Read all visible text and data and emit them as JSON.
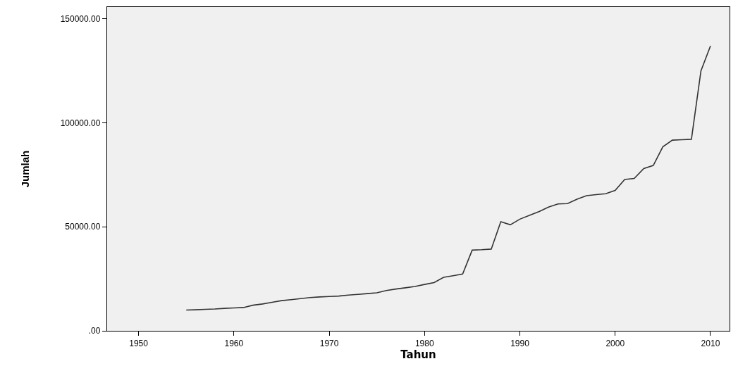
{
  "chart_data": {
    "type": "line",
    "xlabel": "Tahun",
    "ylabel": "Jumlah",
    "x": [
      1955,
      1956,
      1957,
      1958,
      1959,
      1960,
      1961,
      1962,
      1963,
      1964,
      1965,
      1966,
      1967,
      1968,
      1969,
      1970,
      1971,
      1972,
      1973,
      1974,
      1975,
      1976,
      1977,
      1978,
      1979,
      1980,
      1981,
      1982,
      1983,
      1984,
      1985,
      1986,
      1987,
      1988,
      1989,
      1990,
      1991,
      1992,
      1993,
      1994,
      1995,
      1996,
      1997,
      1998,
      1999,
      2000,
      2001,
      2002,
      2003,
      2004,
      2005,
      2006,
      2007,
      2008,
      2009,
      2010
    ],
    "series": [
      {
        "color": "#333333",
        "values": [
          10000,
          10100,
          10300,
          10500,
          10800,
          11000,
          11200,
          12300,
          12900,
          13700,
          14500,
          15000,
          15500,
          16000,
          16300,
          16500,
          16700,
          17200,
          17500,
          17900,
          18300,
          19400,
          20100,
          20700,
          21300,
          22300,
          23200,
          25700,
          26500,
          27300,
          38800,
          39000,
          39300,
          52500,
          51000,
          53700,
          55500,
          57300,
          59500,
          61000,
          61200,
          63300,
          65000,
          65500,
          65900,
          67500,
          72800,
          73300,
          78000,
          79500,
          88500,
          91700,
          91900,
          92100,
          125000,
          137000
        ]
      }
    ],
    "xlim": [
      1946.7,
      2012
    ],
    "xticks": [
      1950,
      1960,
      1970,
      1980,
      1990,
      2000,
      2010
    ],
    "ylim": [
      0,
      155700
    ],
    "yticks": [
      {
        "value": 0,
        "label": ".00"
      },
      {
        "value": 50000,
        "label": "50000.00"
      },
      {
        "value": 100000,
        "label": "100000.00"
      },
      {
        "value": 150000,
        "label": "150000.00"
      }
    ],
    "grid": false,
    "marker": "none",
    "line_style": "solid"
  }
}
